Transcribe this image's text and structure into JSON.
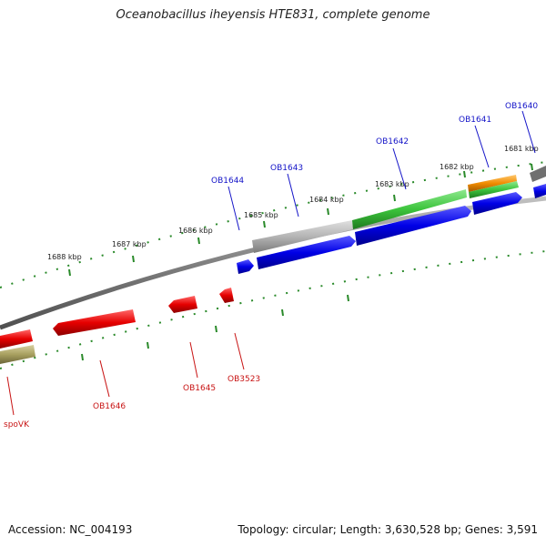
{
  "title": "Oceanobacillus iheyensis HTE831, complete genome",
  "footer": {
    "accession": "Accession: NC_004193",
    "summary": "Topology: circular; Length: 3,630,528 bp; Genes: 3,591"
  },
  "ticks": [
    "1681 kbp",
    "1682 kbp",
    "1683 kbp",
    "1684 kbp",
    "1685 kbp",
    "1686 kbp",
    "1687 kbp",
    "1688 kbp"
  ],
  "genes_forward": [
    "OB1640",
    "OB1641",
    "OB1642",
    "OB1643",
    "OB1644"
  ],
  "genes_reverse": [
    "OB3523",
    "OB1645",
    "OB1646",
    "spoVK"
  ],
  "colors": {
    "forward_label": "#1414c8",
    "reverse_label": "#c81414",
    "blue": "#0000e6",
    "red": "#e60000",
    "green": "#3cc43c",
    "orange": "#f08c00",
    "gray": "#b4b4b4",
    "olive": "#a8a060",
    "backbone": "#808080",
    "tick": "#2a8a2a"
  }
}
